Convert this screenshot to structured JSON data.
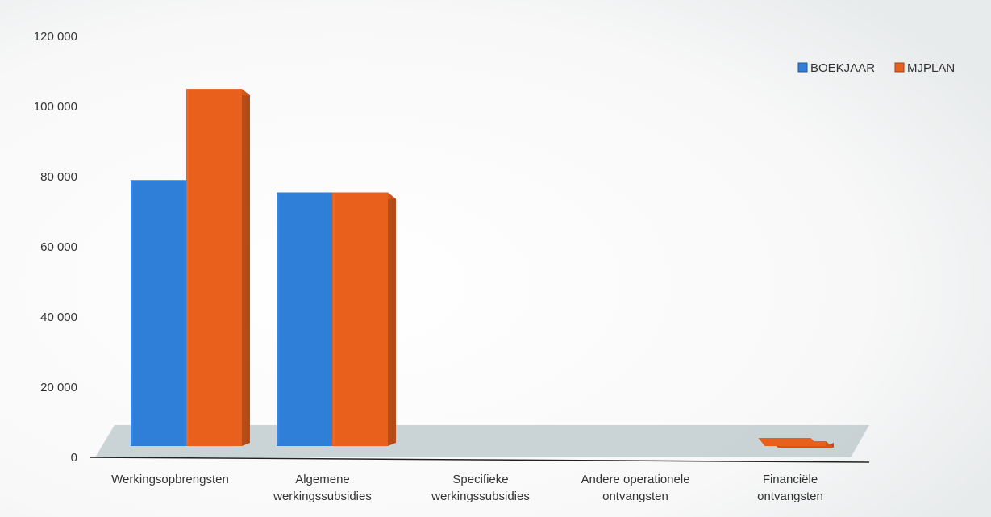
{
  "chart_data": {
    "type": "bar",
    "title": "",
    "xlabel": "",
    "ylabel": "",
    "ylim": [
      0,
      120000
    ],
    "yticks": [
      0,
      20000,
      40000,
      60000,
      80000,
      100000,
      120000
    ],
    "ytick_labels": [
      "0",
      "20 000",
      "40 000",
      "60 000",
      "80 000",
      "100 000",
      "120 000"
    ],
    "categories": [
      [
        "Werkingsopbrengsten"
      ],
      [
        "Algemene",
        "werkingssubsidies"
      ],
      [
        "Specifieke",
        "werkingssubsidies"
      ],
      [
        "Andere operationele",
        "ontvangsten"
      ],
      [
        "Financiële",
        "ontvangsten"
      ]
    ],
    "series": [
      {
        "name": "BOEKJAAR",
        "color": "#2f7ed8",
        "values": [
          79000,
          75500,
          0,
          0,
          0
        ]
      },
      {
        "name": "MJPLAN",
        "color": "#e8601c",
        "values": [
          105000,
          75500,
          0,
          0,
          200
        ]
      }
    ],
    "legend_position": "top-right",
    "grid": false,
    "style": "3d-column"
  }
}
